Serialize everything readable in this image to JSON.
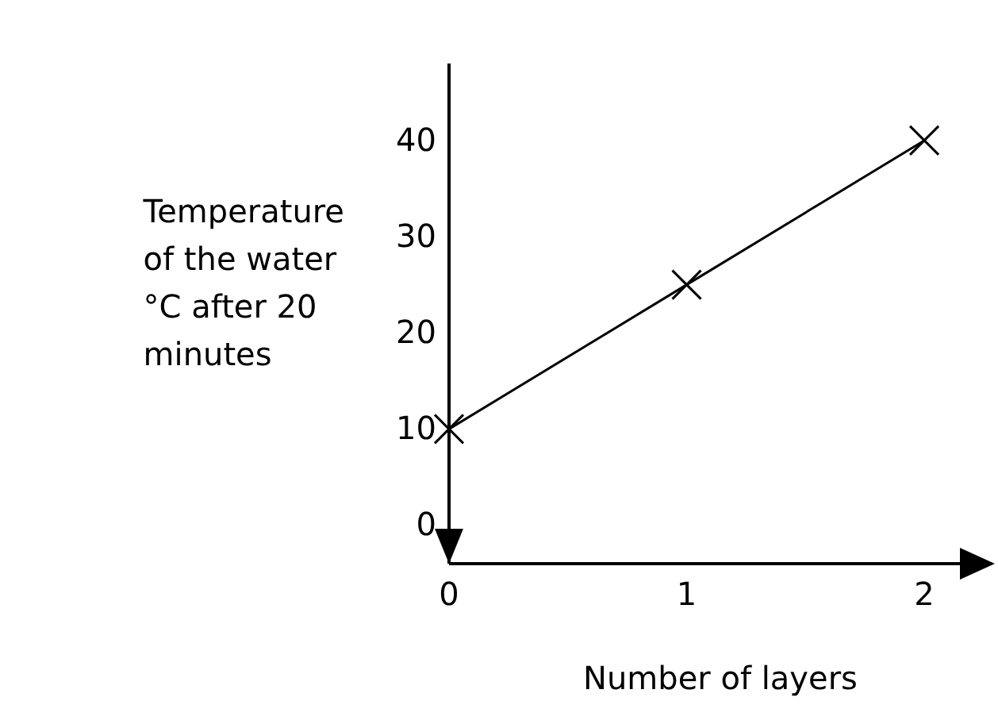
{
  "chart_data": {
    "type": "line",
    "xlabel": "Number of layers",
    "ylabel": "Temperature of the water °C after 20 minutes",
    "x": [
      0,
      1,
      2
    ],
    "series": [
      {
        "color": "#000000",
        "values": [
          10,
          25,
          40
        ]
      }
    ],
    "xlim": [
      0,
      2.15
    ],
    "ylim": [
      -4,
      48
    ],
    "xticks": [
      0,
      1,
      2
    ],
    "yticks": [
      0,
      10,
      20,
      30,
      40
    ],
    "marker": "cross",
    "line_style": "solid",
    "grid": false
  }
}
